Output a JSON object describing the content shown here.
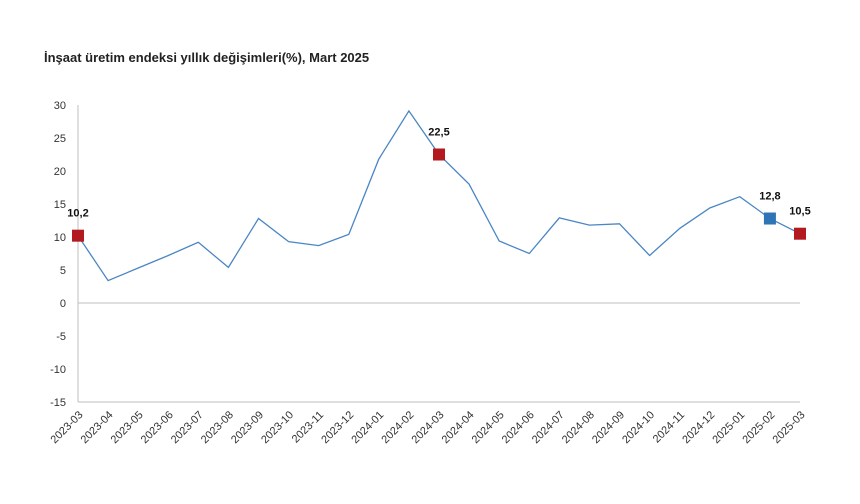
{
  "chart_data": {
    "type": "line",
    "title": "İnşaat üretim endeksi yıllık değişimleri(%), Mart 2025",
    "xlabel": "",
    "ylabel": "",
    "ylim": [
      -15,
      30
    ],
    "yticks": [
      30,
      25,
      20,
      15,
      10,
      5,
      0,
      -5,
      -10,
      -15
    ],
    "grid": false,
    "legend": "none",
    "categories": [
      "2023-03",
      "2023-04",
      "2023-05",
      "2023-06",
      "2023-07",
      "2023-08",
      "2023-09",
      "2023-10",
      "2023-11",
      "2023-12",
      "2024-01",
      "2024-02",
      "2024-03",
      "2024-04",
      "2024-05",
      "2024-06",
      "2024-07",
      "2024-08",
      "2024-09",
      "2024-10",
      "2024-11",
      "2024-12",
      "2025-01",
      "2025-02",
      "2025-03"
    ],
    "series": [
      {
        "values": [
          10.2,
          3.4,
          5.3,
          7.2,
          9.2,
          5.4,
          12.8,
          9.3,
          8.7,
          10.4,
          21.8,
          29.1,
          22.5,
          18.0,
          9.4,
          7.5,
          12.9,
          11.8,
          12.0,
          7.2,
          11.3,
          14.4,
          16.1,
          12.8,
          10.5
        ],
        "color": "#4a86c5"
      }
    ],
    "markers": [
      {
        "category": "2023-03",
        "value": 10.2,
        "label": "10,2",
        "color": "#b31a20"
      },
      {
        "category": "2024-03",
        "value": 22.5,
        "label": "22,5",
        "color": "#b31a20"
      },
      {
        "category": "2025-02",
        "value": 12.8,
        "label": "12,8",
        "color": "#2e75b6"
      },
      {
        "category": "2025-03",
        "value": 10.5,
        "label": "10,5",
        "color": "#b31a20"
      }
    ]
  }
}
